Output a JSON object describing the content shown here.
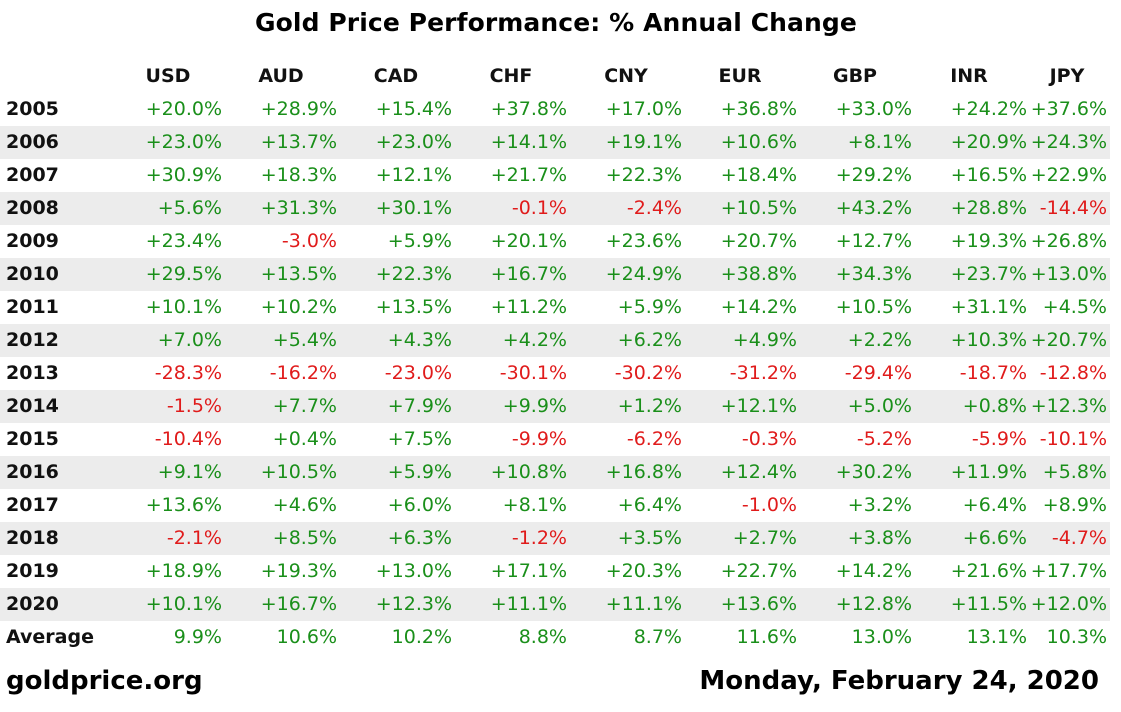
{
  "colors": {
    "positive": "#1a8f1a",
    "negative": "#e01b1b",
    "stripe": "#ececec"
  },
  "chart_data": {
    "type": "table",
    "title": "Gold Price Performance: % Annual Change",
    "columns": [
      "USD",
      "AUD",
      "CAD",
      "CHF",
      "CNY",
      "EUR",
      "GBP",
      "INR",
      "JPY"
    ],
    "rows": [
      {
        "label": "2005",
        "values": [
          "+20.0%",
          "+28.9%",
          "+15.4%",
          "+37.8%",
          "+17.0%",
          "+36.8%",
          "+33.0%",
          "+24.2%",
          "+37.6%"
        ]
      },
      {
        "label": "2006",
        "values": [
          "+23.0%",
          "+13.7%",
          "+23.0%",
          "+14.1%",
          "+19.1%",
          "+10.6%",
          "+8.1%",
          "+20.9%",
          "+24.3%"
        ]
      },
      {
        "label": "2007",
        "values": [
          "+30.9%",
          "+18.3%",
          "+12.1%",
          "+21.7%",
          "+22.3%",
          "+18.4%",
          "+29.2%",
          "+16.5%",
          "+22.9%"
        ]
      },
      {
        "label": "2008",
        "values": [
          "+5.6%",
          "+31.3%",
          "+30.1%",
          "-0.1%",
          "-2.4%",
          "+10.5%",
          "+43.2%",
          "+28.8%",
          "-14.4%"
        ]
      },
      {
        "label": "2009",
        "values": [
          "+23.4%",
          "-3.0%",
          "+5.9%",
          "+20.1%",
          "+23.6%",
          "+20.7%",
          "+12.7%",
          "+19.3%",
          "+26.8%"
        ]
      },
      {
        "label": "2010",
        "values": [
          "+29.5%",
          "+13.5%",
          "+22.3%",
          "+16.7%",
          "+24.9%",
          "+38.8%",
          "+34.3%",
          "+23.7%",
          "+13.0%"
        ]
      },
      {
        "label": "2011",
        "values": [
          "+10.1%",
          "+10.2%",
          "+13.5%",
          "+11.2%",
          "+5.9%",
          "+14.2%",
          "+10.5%",
          "+31.1%",
          "+4.5%"
        ]
      },
      {
        "label": "2012",
        "values": [
          "+7.0%",
          "+5.4%",
          "+4.3%",
          "+4.2%",
          "+6.2%",
          "+4.9%",
          "+2.2%",
          "+10.3%",
          "+20.7%"
        ]
      },
      {
        "label": "2013",
        "values": [
          "-28.3%",
          "-16.2%",
          "-23.0%",
          "-30.1%",
          "-30.2%",
          "-31.2%",
          "-29.4%",
          "-18.7%",
          "-12.8%"
        ]
      },
      {
        "label": "2014",
        "values": [
          "-1.5%",
          "+7.7%",
          "+7.9%",
          "+9.9%",
          "+1.2%",
          "+12.1%",
          "+5.0%",
          "+0.8%",
          "+12.3%"
        ]
      },
      {
        "label": "2015",
        "values": [
          "-10.4%",
          "+0.4%",
          "+7.5%",
          "-9.9%",
          "-6.2%",
          "-0.3%",
          "-5.2%",
          "-5.9%",
          "-10.1%"
        ]
      },
      {
        "label": "2016",
        "values": [
          "+9.1%",
          "+10.5%",
          "+5.9%",
          "+10.8%",
          "+16.8%",
          "+12.4%",
          "+30.2%",
          "+11.9%",
          "+5.8%"
        ]
      },
      {
        "label": "2017",
        "values": [
          "+13.6%",
          "+4.6%",
          "+6.0%",
          "+8.1%",
          "+6.4%",
          "-1.0%",
          "+3.2%",
          "+6.4%",
          "+8.9%"
        ]
      },
      {
        "label": "2018",
        "values": [
          "-2.1%",
          "+8.5%",
          "+6.3%",
          "-1.2%",
          "+3.5%",
          "+2.7%",
          "+3.8%",
          "+6.6%",
          "-4.7%"
        ]
      },
      {
        "label": "2019",
        "values": [
          "+18.9%",
          "+19.3%",
          "+13.0%",
          "+17.1%",
          "+20.3%",
          "+22.7%",
          "+14.2%",
          "+21.6%",
          "+17.7%"
        ]
      },
      {
        "label": "2020",
        "values": [
          "+10.1%",
          "+16.7%",
          "+12.3%",
          "+11.1%",
          "+11.1%",
          "+13.6%",
          "+12.8%",
          "+11.5%",
          "+12.0%"
        ]
      },
      {
        "label": "Average",
        "values": [
          "9.9%",
          "10.6%",
          "10.2%",
          "8.8%",
          "8.7%",
          "11.6%",
          "13.0%",
          "13.1%",
          "10.3%"
        ]
      }
    ]
  },
  "footer": {
    "source": "goldprice.org",
    "date": "Monday, February 24, 2020"
  }
}
